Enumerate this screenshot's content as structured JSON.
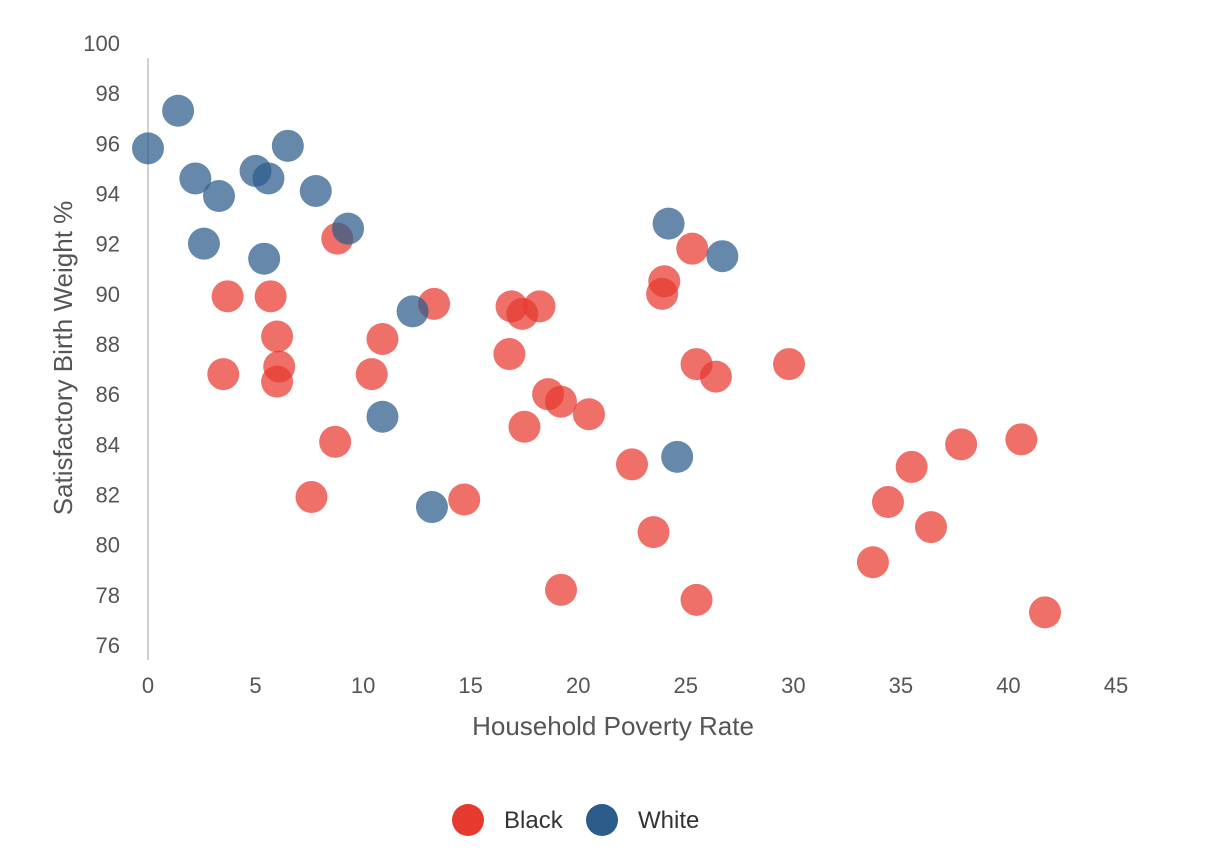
{
  "chart_data": {
    "type": "scatter",
    "title": "",
    "xlabel": "Household Poverty Rate",
    "ylabel": "Satisfactory Birth Weight %",
    "xlim": [
      0,
      45
    ],
    "ylim": [
      76,
      100
    ],
    "x_ticks": [
      0,
      5,
      10,
      15,
      20,
      25,
      30,
      35,
      40,
      45
    ],
    "y_ticks": [
      76,
      78,
      80,
      82,
      84,
      86,
      88,
      90,
      92,
      94,
      96,
      98,
      100
    ],
    "grid": false,
    "legend_position": "bottom",
    "series": [
      {
        "name": "Black",
        "color": "#e8392e",
        "points": [
          [
            3.7,
            89.9
          ],
          [
            3.5,
            86.8
          ],
          [
            5.7,
            89.9
          ],
          [
            6.0,
            88.3
          ],
          [
            6.1,
            87.1
          ],
          [
            6.0,
            86.5
          ],
          [
            7.6,
            81.9
          ],
          [
            8.7,
            84.1
          ],
          [
            8.8,
            92.2
          ],
          [
            10.4,
            86.8
          ],
          [
            10.9,
            88.2
          ],
          [
            13.3,
            89.6
          ],
          [
            14.7,
            81.8
          ],
          [
            16.8,
            87.6
          ],
          [
            16.9,
            89.5
          ],
          [
            17.4,
            89.2
          ],
          [
            18.2,
            89.5
          ],
          [
            17.5,
            84.7
          ],
          [
            18.6,
            86.0
          ],
          [
            19.2,
            85.7
          ],
          [
            20.5,
            85.2
          ],
          [
            19.2,
            78.2
          ],
          [
            22.5,
            83.2
          ],
          [
            23.5,
            80.5
          ],
          [
            24.0,
            90.5
          ],
          [
            23.9,
            90.0
          ],
          [
            25.3,
            91.8
          ],
          [
            25.5,
            87.2
          ],
          [
            26.4,
            86.7
          ],
          [
            25.5,
            77.8
          ],
          [
            29.8,
            87.2
          ],
          [
            33.7,
            79.3
          ],
          [
            34.4,
            81.7
          ],
          [
            35.5,
            83.1
          ],
          [
            36.4,
            80.7
          ],
          [
            37.8,
            84.0
          ],
          [
            40.6,
            84.2
          ],
          [
            41.7,
            77.3
          ]
        ]
      },
      {
        "name": "White",
        "color": "#2b5c8a",
        "points": [
          [
            0.0,
            95.8
          ],
          [
            1.4,
            97.3
          ],
          [
            2.2,
            94.6
          ],
          [
            2.6,
            92.0
          ],
          [
            3.3,
            93.9
          ],
          [
            5.0,
            94.9
          ],
          [
            5.6,
            94.6
          ],
          [
            5.4,
            91.4
          ],
          [
            6.5,
            95.9
          ],
          [
            7.8,
            94.1
          ],
          [
            9.3,
            92.6
          ],
          [
            12.3,
            89.3
          ],
          [
            10.9,
            85.1
          ],
          [
            13.2,
            81.5
          ],
          [
            24.2,
            92.8
          ],
          [
            26.7,
            91.5
          ],
          [
            24.6,
            83.5
          ]
        ]
      }
    ]
  }
}
